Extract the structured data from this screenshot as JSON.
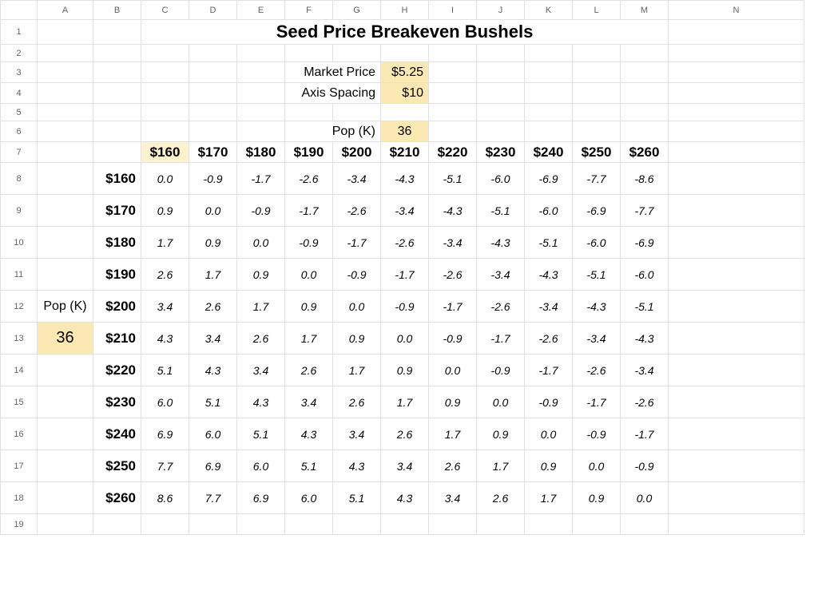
{
  "colors": {
    "highlight_strong": "#fce8b2",
    "highlight_pale": "#fdf2cf",
    "grid_line": "#e1e1e1",
    "header_bg": "#f8f9fa",
    "header_fg": "#5f6368",
    "matrix_border": "#000000",
    "text": "#000000"
  },
  "column_letters": [
    "A",
    "B",
    "C",
    "D",
    "E",
    "F",
    "G",
    "H",
    "I",
    "J",
    "K",
    "L",
    "M",
    "N"
  ],
  "row_numbers": [
    "1",
    "2",
    "3",
    "4",
    "5",
    "6",
    "7",
    "8",
    "9",
    "10",
    "11",
    "12",
    "13",
    "14",
    "15",
    "16",
    "17",
    "18",
    "19"
  ],
  "title": "Seed Price Breakeven Bushels",
  "labels": {
    "market_price": "Market Price",
    "axis_spacing": "Axis Spacing",
    "pop_k_top": "Pop (K)",
    "pop_k_side": "Pop (K)"
  },
  "inputs": {
    "market_price": "$5.25",
    "axis_spacing": "$10",
    "pop_k_top": "36",
    "pop_k_side": "36"
  },
  "matrix": {
    "type": "table",
    "col_headers": [
      "$160",
      "$170",
      "$180",
      "$190",
      "$200",
      "$210",
      "$220",
      "$230",
      "$240",
      "$250",
      "$260"
    ],
    "row_headers": [
      "$160",
      "$170",
      "$180",
      "$190",
      "$200",
      "$210",
      "$220",
      "$230",
      "$240",
      "$250",
      "$260"
    ],
    "highlight_col_header_index": 0,
    "values": [
      [
        "0.0",
        "-0.9",
        "-1.7",
        "-2.6",
        "-3.4",
        "-4.3",
        "-5.1",
        "-6.0",
        "-6.9",
        "-7.7",
        "-8.6"
      ],
      [
        "0.9",
        "0.0",
        "-0.9",
        "-1.7",
        "-2.6",
        "-3.4",
        "-4.3",
        "-5.1",
        "-6.0",
        "-6.9",
        "-7.7"
      ],
      [
        "1.7",
        "0.9",
        "0.0",
        "-0.9",
        "-1.7",
        "-2.6",
        "-3.4",
        "-4.3",
        "-5.1",
        "-6.0",
        "-6.9"
      ],
      [
        "2.6",
        "1.7",
        "0.9",
        "0.0",
        "-0.9",
        "-1.7",
        "-2.6",
        "-3.4",
        "-4.3",
        "-5.1",
        "-6.0"
      ],
      [
        "3.4",
        "2.6",
        "1.7",
        "0.9",
        "0.0",
        "-0.9",
        "-1.7",
        "-2.6",
        "-3.4",
        "-4.3",
        "-5.1"
      ],
      [
        "4.3",
        "3.4",
        "2.6",
        "1.7",
        "0.9",
        "0.0",
        "-0.9",
        "-1.7",
        "-2.6",
        "-3.4",
        "-4.3"
      ],
      [
        "5.1",
        "4.3",
        "3.4",
        "2.6",
        "1.7",
        "0.9",
        "0.0",
        "-0.9",
        "-1.7",
        "-2.6",
        "-3.4"
      ],
      [
        "6.0",
        "5.1",
        "4.3",
        "3.4",
        "2.6",
        "1.7",
        "0.9",
        "0.0",
        "-0.9",
        "-1.7",
        "-2.6"
      ],
      [
        "6.9",
        "6.0",
        "5.1",
        "4.3",
        "3.4",
        "2.6",
        "1.7",
        "0.9",
        "0.0",
        "-0.9",
        "-1.7"
      ],
      [
        "7.7",
        "6.9",
        "6.0",
        "5.1",
        "4.3",
        "3.4",
        "2.6",
        "1.7",
        "0.9",
        "0.0",
        "-0.9"
      ],
      [
        "8.6",
        "7.7",
        "6.9",
        "6.0",
        "5.1",
        "4.3",
        "3.4",
        "2.6",
        "1.7",
        "0.9",
        "0.0"
      ]
    ],
    "value_font_style": "italic",
    "value_font_size_pt": 11,
    "header_font_size_pt": 13,
    "header_font_weight": "bold",
    "border_style": "dotted",
    "border_color": "#000000"
  }
}
